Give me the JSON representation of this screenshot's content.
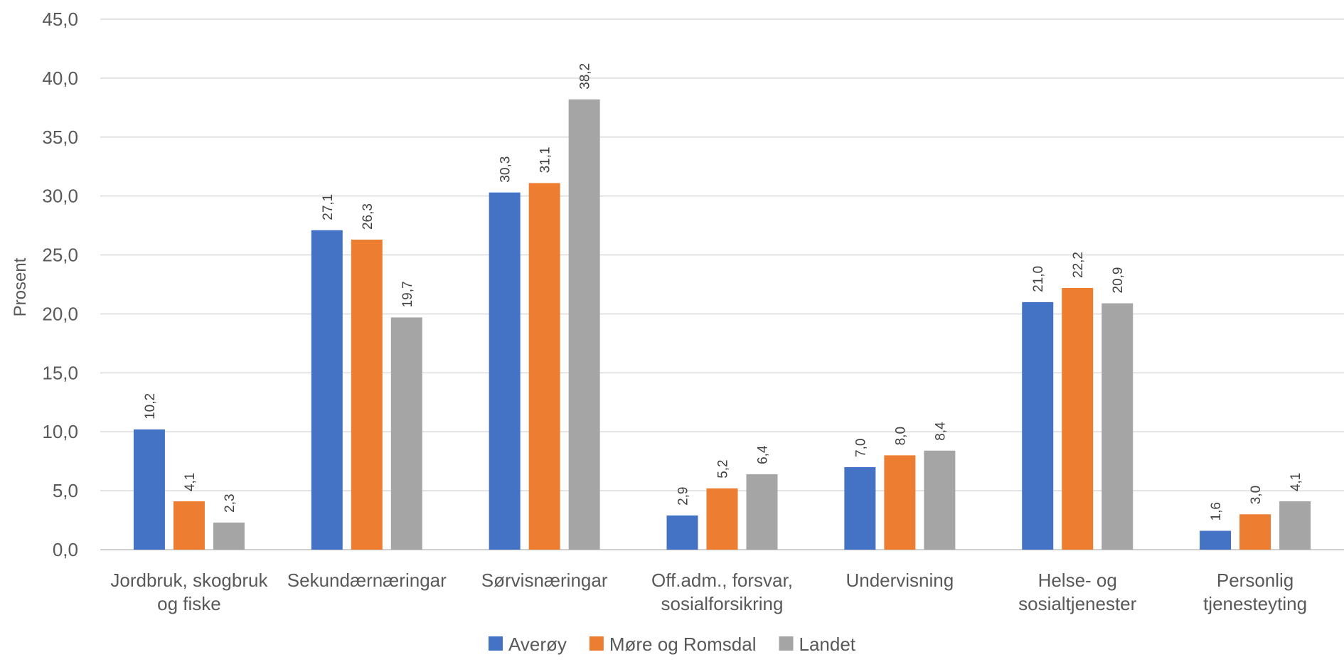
{
  "chart_data": {
    "type": "bar",
    "ylabel": "Prosent",
    "ylim": [
      0,
      45
    ],
    "yticks": [
      "0,0",
      "5,0",
      "10,0",
      "15,0",
      "20,0",
      "25,0",
      "30,0",
      "35,0",
      "40,0",
      "45,0"
    ],
    "grid": true,
    "legend_position": "bottom",
    "categories": [
      [
        "Jordbruk, skogbruk",
        "og fiske"
      ],
      [
        "Sekundærnæringar"
      ],
      [
        "Sørvisnæringar"
      ],
      [
        "Off.adm., forsvar,",
        "sosialforsikring"
      ],
      [
        "Undervisning"
      ],
      [
        "Helse- og",
        "sosialtjenester"
      ],
      [
        "Personlig",
        "tjenesteyting"
      ]
    ],
    "series": [
      {
        "name": "Averøy",
        "color": "#4472C4",
        "values": [
          10.2,
          27.1,
          30.3,
          2.9,
          7.0,
          21.0,
          1.6
        ],
        "labels": [
          "10,2",
          "27,1",
          "30,3",
          "2,9",
          "7,0",
          "21,0",
          "1,6"
        ]
      },
      {
        "name": "Møre og Romsdal",
        "color": "#ED7D31",
        "values": [
          4.1,
          26.3,
          31.1,
          5.2,
          8.0,
          22.2,
          3.0
        ],
        "labels": [
          "4,1",
          "26,3",
          "31,1",
          "5,2",
          "8,0",
          "22,2",
          "3,0"
        ]
      },
      {
        "name": "Landet",
        "color": "#A5A5A5",
        "values": [
          2.3,
          19.7,
          38.2,
          6.4,
          8.4,
          20.9,
          4.1
        ],
        "labels": [
          "2,3",
          "19,7",
          "38,2",
          "6,4",
          "8,4",
          "20,9",
          "4,1"
        ]
      }
    ]
  }
}
